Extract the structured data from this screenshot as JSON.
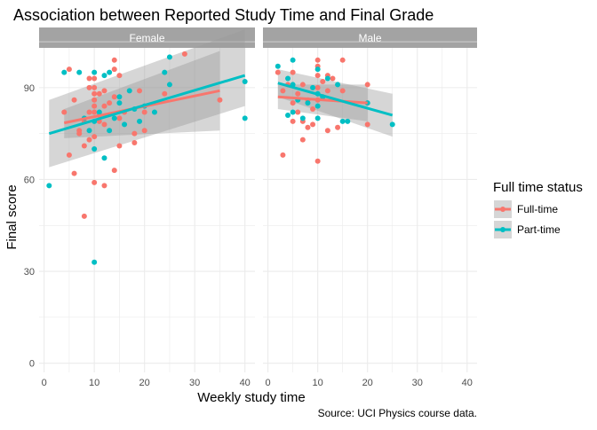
{
  "title": "Association between Reported Study Time and Final Grade",
  "caption": "Source: UCI Physics course data.",
  "colors": {
    "full_time": "#F8766D",
    "part_time": "#00BFC4",
    "strip_bg": "#A3A3A3",
    "grid": "#EBEBEB",
    "ribbon": "#999999"
  },
  "chart_data": {
    "type": "scatter",
    "xlabel": "Weekly study time",
    "ylabel": "Final score",
    "xlim": [
      -1,
      42
    ],
    "ylim": [
      -3,
      103
    ],
    "x_ticks": [
      0,
      10,
      20,
      30,
      40
    ],
    "y_ticks": [
      0,
      30,
      60,
      90
    ],
    "grid": true,
    "legend": {
      "title": "Full time status",
      "position": "right",
      "entries": [
        "Full-time",
        "Part-time"
      ]
    },
    "facets": [
      {
        "name": "Female",
        "series": [
          {
            "name": "Full-time",
            "points": [
              [
                4,
                82
              ],
              [
                5,
                96
              ],
              [
                5,
                68
              ],
              [
                6,
                62
              ],
              [
                6,
                86
              ],
              [
                7,
                76
              ],
              [
                7,
                75
              ],
              [
                8,
                71
              ],
              [
                8,
                48
              ],
              [
                8,
                79
              ],
              [
                9,
                73
              ],
              [
                9,
                82
              ],
              [
                9,
                90
              ],
              [
                9,
                93
              ],
              [
                10,
                59
              ],
              [
                10,
                74
              ],
              [
                10,
                86
              ],
              [
                10,
                93
              ],
              [
                10,
                90
              ],
              [
                10,
                88
              ],
              [
                10,
                84
              ],
              [
                10,
                82
              ],
              [
                11,
                79
              ],
              [
                11,
                81
              ],
              [
                11,
                88
              ],
              [
                12,
                84
              ],
              [
                12,
                58
              ],
              [
                12,
                78
              ],
              [
                12,
                89
              ],
              [
                13,
                85
              ],
              [
                14,
                99
              ],
              [
                14,
                96
              ],
              [
                14,
                87
              ],
              [
                14,
                63
              ],
              [
                15,
                71
              ],
              [
                15,
                80
              ],
              [
                15,
                94
              ],
              [
                16,
                82
              ],
              [
                18,
                75
              ],
              [
                18,
                72
              ],
              [
                19,
                89
              ],
              [
                20,
                76
              ],
              [
                20,
                82
              ],
              [
                24,
                88
              ],
              [
                28,
                101
              ],
              [
                35,
                86
              ]
            ],
            "trend": {
              "x": [
                4,
                35
              ],
              "y": [
                78.5,
                89
              ]
            },
            "ribbon": {
              "x": [
                4,
                35
              ],
              "y_low": [
                73.5,
                76
              ],
              "y_high": [
                83,
                102
              ]
            }
          },
          {
            "name": "Part-time",
            "points": [
              [
                1,
                58
              ],
              [
                4,
                95
              ],
              [
                7,
                95
              ],
              [
                8,
                80
              ],
              [
                9,
                76
              ],
              [
                10,
                33
              ],
              [
                10,
                70
              ],
              [
                10,
                95
              ],
              [
                10,
                79
              ],
              [
                11,
                82
              ],
              [
                12,
                67
              ],
              [
                12,
                94
              ],
              [
                13,
                76
              ],
              [
                13,
                95
              ],
              [
                14,
                80
              ],
              [
                15,
                87
              ],
              [
                15,
                85
              ],
              [
                16,
                78
              ],
              [
                17,
                89
              ],
              [
                18,
                83
              ],
              [
                19,
                79
              ],
              [
                20,
                84
              ],
              [
                22,
                82
              ],
              [
                24,
                95
              ],
              [
                25,
                100
              ],
              [
                25,
                91
              ],
              [
                40,
                92
              ],
              [
                40,
                80
              ]
            ],
            "trend": {
              "x": [
                1,
                40
              ],
              "y": [
                75,
                94
              ]
            },
            "ribbon": {
              "x": [
                1,
                40
              ],
              "y_low": [
                64,
                84
              ],
              "y_high": [
                86,
                109
              ]
            }
          }
        ]
      },
      {
        "name": "Male",
        "series": [
          {
            "name": "Full-time",
            "points": [
              [
                2,
                95
              ],
              [
                3,
                68
              ],
              [
                3,
                89
              ],
              [
                4,
                91
              ],
              [
                5,
                79
              ],
              [
                5,
                85
              ],
              [
                5,
                95
              ],
              [
                6,
                88
              ],
              [
                6,
                82
              ],
              [
                7,
                91
              ],
              [
                7,
                73
              ],
              [
                7,
                79
              ],
              [
                8,
                86
              ],
              [
                8,
                77
              ],
              [
                9,
                78
              ],
              [
                9,
                83
              ],
              [
                10,
                99
              ],
              [
                10,
                97
              ],
              [
                10,
                94
              ],
              [
                10,
                90
              ],
              [
                10,
                86
              ],
              [
                10,
                66
              ],
              [
                11,
                92
              ],
              [
                11,
                87
              ],
              [
                12,
                94
              ],
              [
                12,
                89
              ],
              [
                12,
                76
              ],
              [
                13,
                93
              ],
              [
                14,
                77
              ],
              [
                15,
                99
              ],
              [
                15,
                89
              ],
              [
                20,
                91
              ],
              [
                20,
                78
              ]
            ],
            "trend": {
              "x": [
                2,
                20
              ],
              "y": [
                87,
                85
              ]
            },
            "ribbon": {
              "x": [
                2,
                20
              ],
              "y_low": [
                83,
                79
              ],
              "y_high": [
                91,
                91
              ]
            }
          },
          {
            "name": "Part-time",
            "points": [
              [
                2,
                97
              ],
              [
                4,
                93
              ],
              [
                4,
                81
              ],
              [
                5,
                82
              ],
              [
                5,
                99
              ],
              [
                5,
                91
              ],
              [
                6,
                86
              ],
              [
                7,
                80
              ],
              [
                8,
                85
              ],
              [
                9,
                90
              ],
              [
                10,
                84
              ],
              [
                10,
                80
              ],
              [
                10,
                96
              ],
              [
                10,
                88
              ],
              [
                11,
                87
              ],
              [
                12,
                93
              ],
              [
                14,
                91
              ],
              [
                15,
                79
              ],
              [
                16,
                79
              ],
              [
                20,
                85
              ],
              [
                25,
                78
              ]
            ],
            "trend": {
              "x": [
                2,
                25
              ],
              "y": [
                91.5,
                81
              ]
            },
            "ribbon": {
              "x": [
                2,
                25
              ],
              "y_low": [
                87,
                74
              ],
              "y_high": [
                96,
                88
              ]
            }
          }
        ]
      }
    ]
  }
}
